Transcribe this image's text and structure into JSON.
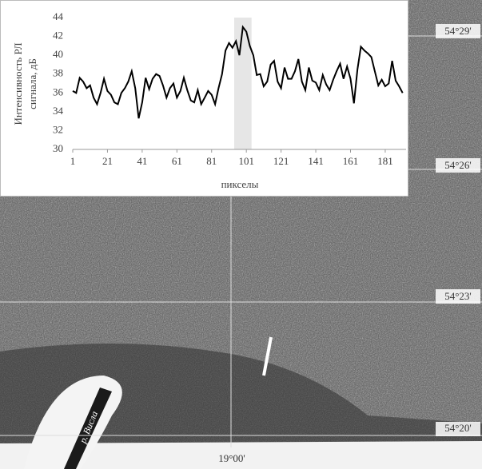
{
  "chart_data": {
    "type": "line",
    "ylabel": [
      "Интенсивность РЛ",
      "сигнала, дБ"
    ],
    "xlabel": "пикселы",
    "x": [
      1,
      3,
      5,
      7,
      9,
      11,
      13,
      15,
      17,
      19,
      21,
      23,
      25,
      27,
      29,
      31,
      33,
      35,
      37,
      39,
      41,
      43,
      45,
      47,
      49,
      51,
      53,
      55,
      57,
      59,
      61,
      63,
      65,
      67,
      69,
      71,
      73,
      75,
      77,
      79,
      81,
      83,
      85,
      87,
      89,
      91,
      93,
      95,
      97,
      99,
      101,
      103,
      105,
      107,
      109,
      111,
      113,
      115,
      117,
      119,
      121,
      123,
      125,
      127,
      129,
      131,
      133,
      135,
      137,
      139,
      141,
      143,
      145,
      147,
      149,
      151,
      153,
      155,
      157,
      159,
      161,
      163,
      165,
      167,
      169,
      171,
      173,
      175,
      177,
      179,
      181,
      183,
      185,
      187,
      189,
      191
    ],
    "values": [
      36.2,
      36,
      37.6,
      37.2,
      36.5,
      36.8,
      35.5,
      34.8,
      36,
      37.5,
      36.2,
      35.8,
      35,
      34.8,
      36,
      36.5,
      37.2,
      38.3,
      36.5,
      33.3,
      35,
      37.6,
      36.4,
      37.5,
      38,
      37.8,
      36.8,
      35.5,
      36.5,
      37,
      35.5,
      36.2,
      37.6,
      36.3,
      35.2,
      35,
      36.3,
      34.8,
      35.5,
      36.2,
      35.8,
      34.8,
      36.5,
      38,
      40.5,
      41.3,
      40.8,
      41.5,
      40,
      43,
      42.5,
      41,
      40,
      37.9,
      38,
      36.7,
      37.2,
      39,
      39.4,
      37.2,
      36.5,
      38.7,
      37.5,
      37.5,
      38.3,
      39.6,
      37.2,
      36.3,
      38.7,
      37.3,
      37.1,
      36.3,
      37.9,
      36.9,
      36.3,
      37.4,
      38.3,
      39.1,
      37.5,
      38.8,
      37.5,
      34.9,
      38.5,
      40.9,
      40.5,
      40.2,
      39.8,
      38.3,
      36.8,
      37.4,
      36.7,
      37,
      39.4,
      37.3,
      36.7,
      36
    ],
    "color": "#000000",
    "highlight_x": [
      94,
      104
    ],
    "highlight_color": "#e6e6e6",
    "xlim": [
      1,
      193
    ],
    "ylim": [
      30,
      44
    ],
    "xticks": [
      1,
      21,
      41,
      61,
      81,
      101,
      121,
      141,
      161,
      181
    ],
    "yticks": [
      30,
      32,
      34,
      36,
      38,
      40,
      42,
      44
    ],
    "grid": false
  },
  "map_labels": {
    "latitudes": [
      "54°29'",
      "54°26'",
      "54°23'",
      "54°20'"
    ],
    "longitude": "19°00'",
    "river": "р. Висла"
  }
}
